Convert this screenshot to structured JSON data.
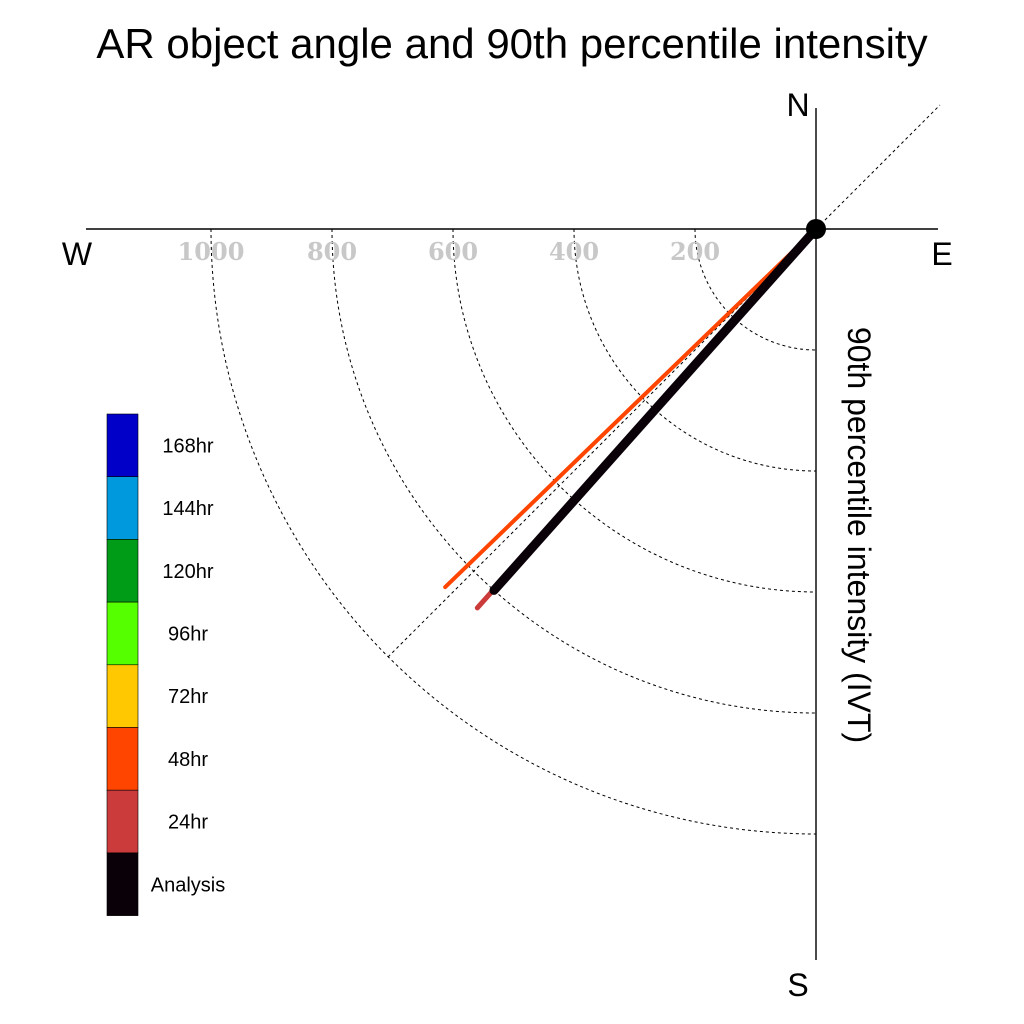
{
  "chart_data": {
    "type": "polar-vector",
    "title": "AR object angle and 90th percentile intensity",
    "ylabel": "90th percentile intensity (IVT)",
    "compass": {
      "north": "N",
      "south": "S",
      "east": "E",
      "west": "W"
    },
    "radial_ticks": [
      200,
      400,
      600,
      800,
      1000
    ],
    "radial_tick_labels": [
      "200",
      "400",
      "600",
      "800",
      "1000"
    ],
    "radial_max": 1200,
    "grid": "dashed quarter-circles (SW quadrant) and 45-degree diagonal",
    "series": [
      {
        "name": "Analysis",
        "direction_deg_from_north": 221.7,
        "intensity": 800,
        "color": "#0a0008"
      },
      {
        "name": "24hr",
        "direction_deg_from_north": 221.8,
        "intensity": 840,
        "color": "#cc3b3b"
      },
      {
        "name": "48hr",
        "direction_deg_from_north": 226.0,
        "intensity": 852,
        "color": "#ff4500"
      }
    ],
    "legend": {
      "placement": "left",
      "entries": [
        {
          "label": "168hr",
          "color": "#0000c8"
        },
        {
          "label": "144hr",
          "color": "#0099dd"
        },
        {
          "label": "120hr",
          "color": "#009c18"
        },
        {
          "label": "96hr",
          "color": "#55ff00"
        },
        {
          "label": "72hr",
          "color": "#ffc800"
        },
        {
          "label": "48hr",
          "color": "#ff4500"
        },
        {
          "label": "24hr",
          "color": "#cc3b3b"
        },
        {
          "label": "Analysis",
          "color": "#0a0008"
        }
      ]
    }
  }
}
